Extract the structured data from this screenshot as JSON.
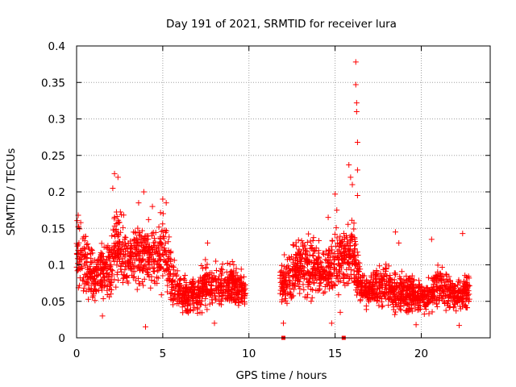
{
  "chart_data": {
    "type": "scatter",
    "title": "Day 191 of 2021, SRMTID for receiver lura",
    "xlabel": "GPS time / hours",
    "ylabel": "SRMTID / TECUs",
    "xlim": [
      0,
      24
    ],
    "ylim": [
      0,
      0.4
    ],
    "x_ticks": [
      0,
      5,
      10,
      15,
      20
    ],
    "x_tick_labels": [
      "0",
      "5",
      "10",
      "15",
      "20"
    ],
    "y_ticks": [
      0,
      0.05,
      0.1,
      0.15,
      0.2,
      0.25,
      0.3,
      0.35,
      0.4
    ],
    "y_tick_labels": [
      "0",
      "0.05",
      "0.1",
      "0.15",
      "0.2",
      "0.25",
      "0.3",
      "0.35",
      "0.4"
    ],
    "grid": true,
    "marker": "+",
    "color": "#ff0000",
    "series": [
      {
        "name": "SRMTID",
        "segments": [
          {
            "x_start": 0.0,
            "x_end": 9.8,
            "level": [
              [
                0,
                0.12
              ],
              [
                0.5,
                0.1
              ],
              [
                1,
                0.085
              ],
              [
                1.5,
                0.09
              ],
              [
                2,
                0.1
              ],
              [
                2.3,
                0.14
              ],
              [
                2.6,
                0.12
              ],
              [
                3,
                0.11
              ],
              [
                3.5,
                0.11
              ],
              [
                4,
                0.12
              ],
              [
                4.5,
                0.11
              ],
              [
                5,
                0.12
              ],
              [
                5.3,
                0.1
              ],
              [
                5.6,
                0.075
              ],
              [
                6,
                0.065
              ],
              [
                6.5,
                0.055
              ],
              [
                7,
                0.06
              ],
              [
                7.5,
                0.075
              ],
              [
                8,
                0.07
              ],
              [
                8.5,
                0.07
              ],
              [
                9,
                0.075
              ],
              [
                9.5,
                0.065
              ],
              [
                9.8,
                0.06
              ]
            ]
          },
          {
            "x_start": 11.8,
            "x_end": 16.2,
            "level": [
              [
                11.8,
                0.07
              ],
              [
                12,
                0.075
              ],
              [
                12.5,
                0.085
              ],
              [
                13,
                0.1
              ],
              [
                13.5,
                0.1
              ],
              [
                14,
                0.095
              ],
              [
                14.5,
                0.09
              ],
              [
                15,
                0.1
              ],
              [
                15.5,
                0.11
              ],
              [
                16,
                0.12
              ],
              [
                16.2,
                0.11
              ]
            ]
          },
          {
            "x_start": 16.2,
            "x_end": 22.8,
            "level": [
              [
                16.2,
                0.1
              ],
              [
                16.5,
                0.07
              ],
              [
                17,
                0.065
              ],
              [
                17.5,
                0.07
              ],
              [
                18,
                0.07
              ],
              [
                18.5,
                0.065
              ],
              [
                19,
                0.06
              ],
              [
                19.5,
                0.06
              ],
              [
                20,
                0.055
              ],
              [
                20.5,
                0.06
              ],
              [
                21,
                0.07
              ],
              [
                21.5,
                0.065
              ],
              [
                22,
                0.06
              ],
              [
                22.5,
                0.06
              ],
              [
                22.8,
                0.065
              ]
            ]
          }
        ],
        "highlights": [
          {
            "x": 2.2,
            "y": 0.225
          },
          {
            "x": 2.4,
            "y": 0.22
          },
          {
            "x": 2.1,
            "y": 0.205
          },
          {
            "x": 3.9,
            "y": 0.2
          },
          {
            "x": 5.0,
            "y": 0.19
          },
          {
            "x": 5.2,
            "y": 0.185
          },
          {
            "x": 3.6,
            "y": 0.185
          },
          {
            "x": 4.4,
            "y": 0.18
          },
          {
            "x": 16.2,
            "y": 0.378
          },
          {
            "x": 16.2,
            "y": 0.347
          },
          {
            "x": 16.25,
            "y": 0.322
          },
          {
            "x": 16.25,
            "y": 0.31
          },
          {
            "x": 16.3,
            "y": 0.268
          },
          {
            "x": 15.8,
            "y": 0.237
          },
          {
            "x": 16.3,
            "y": 0.23
          },
          {
            "x": 15.9,
            "y": 0.22
          },
          {
            "x": 16.0,
            "y": 0.21
          },
          {
            "x": 15.0,
            "y": 0.197
          },
          {
            "x": 16.3,
            "y": 0.195
          },
          {
            "x": 15.1,
            "y": 0.175
          },
          {
            "x": 14.6,
            "y": 0.165
          },
          {
            "x": 7.6,
            "y": 0.13
          },
          {
            "x": 20.6,
            "y": 0.135
          },
          {
            "x": 22.4,
            "y": 0.143
          },
          {
            "x": 18.5,
            "y": 0.145
          },
          {
            "x": 18.7,
            "y": 0.13
          },
          {
            "x": 4.0,
            "y": 0.015
          },
          {
            "x": 14.8,
            "y": 0.02
          },
          {
            "x": 12.0,
            "y": 0.02
          },
          {
            "x": 19.7,
            "y": 0.018
          },
          {
            "x": 22.2,
            "y": 0.017
          },
          {
            "x": 8.0,
            "y": 0.02
          },
          {
            "x": 15.3,
            "y": 0.035
          },
          {
            "x": 1.5,
            "y": 0.03
          }
        ],
        "markers_at_zero": [
          {
            "x": 12.0,
            "y": 0.0
          },
          {
            "x": 15.5,
            "y": 0.0
          }
        ]
      }
    ]
  }
}
